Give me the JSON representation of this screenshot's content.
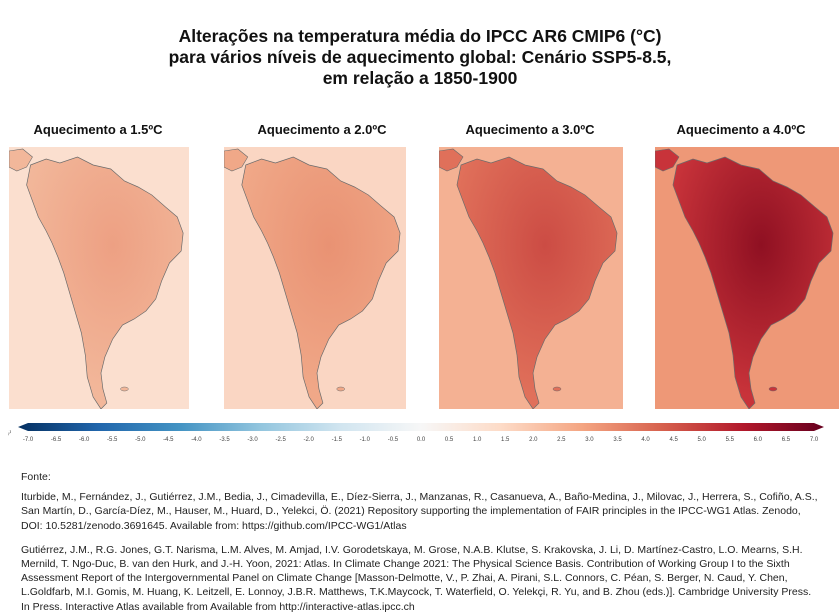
{
  "title": {
    "line1": "Alterações na temperatura média do IPCC AR6 CMIP6 (°C)",
    "line2": "para vários níveis de aquecimento global: Cenário SSP5-8.5,",
    "line3": "em relação a 1850-1900"
  },
  "panels": [
    {
      "label": "Aquecimento a 1.5ºC",
      "fill": "#f2b79a",
      "core": "#eda083",
      "ocean": "#fbdfcf"
    },
    {
      "label": "Aquecimento a 2.0ºC",
      "fill": "#f0a888",
      "core": "#e99273",
      "ocean": "#fad6c3"
    },
    {
      "label": "Aquecimento a 3.0ºC",
      "fill": "#e0705a",
      "core": "#cc4c44",
      "ocean": "#f4b193"
    },
    {
      "label": "Aquecimento a 4.0ºC",
      "fill": "#c8333a",
      "core": "#8f1022",
      "ocean": "#ee9877"
    }
  ],
  "colorbar": {
    "unit": "°C",
    "ticks": [
      "-7.0",
      "-6.5",
      "-6.0",
      "-5.5",
      "-5.0",
      "-4.5",
      "-4.0",
      "-3.5",
      "-3.0",
      "-2.5",
      "-2.0",
      "-1.5",
      "-1.0",
      "-0.5",
      "0.0",
      "0.5",
      "1.0",
      "1.5",
      "2.0",
      "2.5",
      "3.0",
      "3.5",
      "4.0",
      "4.5",
      "5.0",
      "5.5",
      "6.0",
      "6.5",
      "7.0"
    ],
    "colors": [
      "#053061",
      "#2166ac",
      "#4393c3",
      "#92c5de",
      "#d1e5f0",
      "#f7f7f7",
      "#fddbc7",
      "#f4a582",
      "#d6604d",
      "#b2182b",
      "#67001f"
    ]
  },
  "sources": {
    "label": "Fonte:",
    "ref1": "Iturbide, M., Fernández, J., Gutiérrez, J.M., Bedia, J., Cimadevilla, E., Díez-Sierra, J., Manzanas, R., Casanueva, A., Baño-Medina, J., Milovac, J., Herrera, S., Cofiño, A.S., San Martín, D., García-Díez, M., Hauser, M., Huard, D., Yelekci, Ö. (2021) Repository supporting the implementation of FAIR principles in the IPCC-WG1 Atlas. Zenodo, DOI: 10.5281/zenodo.3691645. Available from: https://github.com/IPCC-WG1/Atlas",
    "ref2": "Gutiérrez, J.M., R.G. Jones, G.T. Narisma, L.M. Alves, M. Amjad, I.V. Gorodetskaya, M. Grose, N.A.B. Klutse, S. Krakovska, J. Li, D. Martínez-Castro, L.O. Mearns, S.H. Mernild, T. Ngo-Duc, B. van den Hurk, and J.-H. Yoon, 2021: Atlas. In Climate Change 2021: The Physical Science Basis. Contribution of Working Group I to the Sixth Assessment Report of the Intergovernmental Panel on Climate Change [Masson-Delmotte, V., P. Zhai, A. Pirani, S.L. Connors, C. Péan, S. Berger, N. Caud, Y. Chen, L.Goldfarb, M.I. Gomis, M. Huang, K. Leitzell, E. Lonnoy, J.B.R. Matthews, T.K.Maycock, T. Waterfield, O. Yelekçi, R. Yu, and B. Zhou (eds.)]. Cambridge University Press. In Press. Interactive Atlas available from Available from http://interactive-atlas.ipcc.ch"
  }
}
